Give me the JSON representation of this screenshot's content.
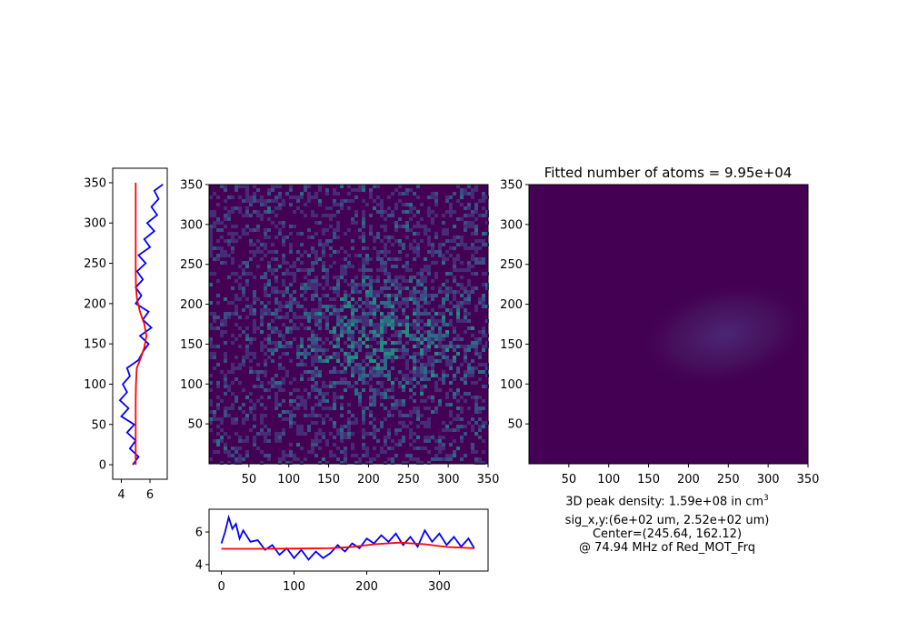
{
  "title": "Fitted number of atoms = 9.95e+04",
  "info": {
    "density_prefix": "3D peak density: 1.59e+08 in cm",
    "density_exp": "3",
    "sigma": "sig_x,y:(6e+02 um, 2.52e+02 um)",
    "center": "Center=(245.64, 162.12)",
    "freq": "@ 74.94 MHz of Red_MOT_Frq"
  },
  "colors": {
    "raw_line": "#0000ff",
    "fit_line": "#ff0000",
    "image_background": "#440154",
    "image_noise": [
      "#440154",
      "#46327e",
      "#365c8d",
      "#277f8e",
      "#1fa187"
    ]
  },
  "chart_data": [
    {
      "type": "line",
      "panel": "vertical-profile",
      "orientation": "vertical",
      "x_ticks": [
        "4",
        "6"
      ],
      "xlim": [
        3.4,
        7.2
      ],
      "y_ticks": [
        "0",
        "50",
        "100",
        "150",
        "200",
        "250",
        "300",
        "350"
      ],
      "ylim": [
        -18,
        368
      ],
      "series": [
        {
          "style": "raw",
          "points": [
            [
              4.8,
              0
            ],
            [
              5.2,
              10
            ],
            [
              4.6,
              20
            ],
            [
              5.0,
              30
            ],
            [
              4.4,
              40
            ],
            [
              4.9,
              50
            ],
            [
              4.0,
              60
            ],
            [
              4.5,
              70
            ],
            [
              3.9,
              80
            ],
            [
              4.4,
              90
            ],
            [
              4.1,
              100
            ],
            [
              4.6,
              110
            ],
            [
              4.4,
              120
            ],
            [
              5.2,
              130
            ],
            [
              5.5,
              140
            ],
            [
              5.9,
              150
            ],
            [
              5.3,
              160
            ],
            [
              6.1,
              170
            ],
            [
              5.5,
              180
            ],
            [
              5.9,
              190
            ],
            [
              5.0,
              200
            ],
            [
              5.4,
              210
            ],
            [
              5.0,
              220
            ],
            [
              5.5,
              230
            ],
            [
              5.1,
              240
            ],
            [
              5.7,
              250
            ],
            [
              5.2,
              260
            ],
            [
              6.0,
              270
            ],
            [
              5.6,
              280
            ],
            [
              6.3,
              290
            ],
            [
              5.8,
              300
            ],
            [
              6.5,
              310
            ],
            [
              6.1,
              320
            ],
            [
              6.6,
              330
            ],
            [
              6.3,
              340
            ],
            [
              6.9,
              348
            ]
          ]
        },
        {
          "style": "fit",
          "points": [
            [
              5.0,
              0
            ],
            [
              5.0,
              40
            ],
            [
              5.0,
              80
            ],
            [
              5.02,
              100
            ],
            [
              5.08,
              120
            ],
            [
              5.3,
              130
            ],
            [
              5.6,
              145
            ],
            [
              5.75,
              160
            ],
            [
              5.6,
              175
            ],
            [
              5.3,
              190
            ],
            [
              5.1,
              205
            ],
            [
              5.02,
              220
            ],
            [
              5.0,
              240
            ],
            [
              5.0,
              280
            ],
            [
              5.0,
              350
            ]
          ]
        }
      ]
    },
    {
      "type": "heatmap",
      "panel": "raw-image",
      "x_ticks": [
        "50",
        "100",
        "150",
        "200",
        "250",
        "300",
        "350"
      ],
      "y_ticks": [
        "50",
        "100",
        "150",
        "200",
        "250",
        "300",
        "350"
      ],
      "xlim": [
        0,
        350
      ],
      "ylim": [
        0,
        350
      ],
      "cloud_center": [
        215,
        160
      ]
    },
    {
      "type": "heatmap",
      "panel": "fitted-image",
      "x_ticks": [
        "50",
        "100",
        "150",
        "200",
        "250",
        "300",
        "350"
      ],
      "y_ticks": [
        "50",
        "100",
        "150",
        "200",
        "250",
        "300",
        "350"
      ],
      "xlim": [
        0,
        350
      ],
      "ylim": [
        0,
        350
      ],
      "cloud_center": [
        245.64,
        162.12
      ]
    },
    {
      "type": "line",
      "panel": "horizontal-profile",
      "x_ticks": [
        "0",
        "100",
        "200",
        "300"
      ],
      "xlim": [
        -17,
        367
      ],
      "y_ticks": [
        "4",
        "6"
      ],
      "ylim": [
        3.6,
        7.4
      ],
      "series": [
        {
          "style": "raw",
          "points": [
            [
              0,
              5.3
            ],
            [
              5,
              6.0
            ],
            [
              10,
              6.9
            ],
            [
              15,
              6.2
            ],
            [
              20,
              6.5
            ],
            [
              25,
              5.6
            ],
            [
              30,
              6.1
            ],
            [
              40,
              5.4
            ],
            [
              50,
              5.5
            ],
            [
              60,
              4.9
            ],
            [
              70,
              5.2
            ],
            [
              80,
              4.6
            ],
            [
              90,
              5.0
            ],
            [
              100,
              4.4
            ],
            [
              110,
              4.9
            ],
            [
              120,
              4.3
            ],
            [
              130,
              4.8
            ],
            [
              140,
              4.4
            ],
            [
              150,
              4.7
            ],
            [
              160,
              5.2
            ],
            [
              170,
              4.8
            ],
            [
              180,
              5.3
            ],
            [
              190,
              5.0
            ],
            [
              200,
              5.6
            ],
            [
              210,
              5.3
            ],
            [
              220,
              5.8
            ],
            [
              230,
              5.4
            ],
            [
              240,
              5.9
            ],
            [
              250,
              5.2
            ],
            [
              260,
              5.7
            ],
            [
              270,
              5.1
            ],
            [
              280,
              6.1
            ],
            [
              290,
              5.4
            ],
            [
              300,
              5.9
            ],
            [
              310,
              5.2
            ],
            [
              320,
              5.7
            ],
            [
              330,
              5.1
            ],
            [
              340,
              5.6
            ],
            [
              348,
              5.0
            ]
          ]
        },
        {
          "style": "fit",
          "points": [
            [
              0,
              4.97
            ],
            [
              50,
              4.97
            ],
            [
              100,
              4.98
            ],
            [
              150,
              5.0
            ],
            [
              180,
              5.08
            ],
            [
              210,
              5.25
            ],
            [
              245,
              5.35
            ],
            [
              280,
              5.25
            ],
            [
              310,
              5.08
            ],
            [
              348,
              5.0
            ]
          ]
        }
      ]
    }
  ]
}
